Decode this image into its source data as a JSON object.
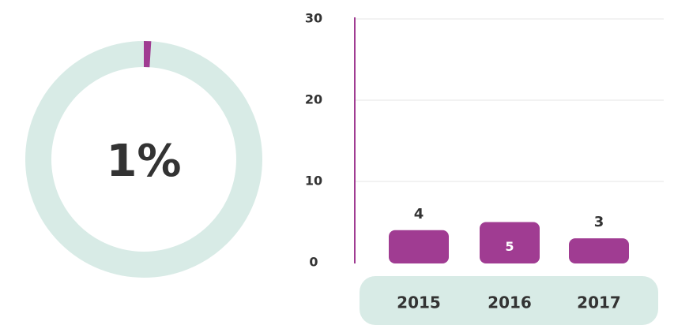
{
  "chart_data": [
    {
      "type": "donut",
      "values": [
        1
      ],
      "value_labels": [
        "1%"
      ],
      "color": "#a03c92",
      "track_color": "#d8ebe6"
    },
    {
      "type": "bar",
      "categories": [
        "2015",
        "2016",
        "2017"
      ],
      "values": [
        4,
        5,
        3
      ],
      "color": "#a03c92",
      "ylim": [
        0,
        30
      ],
      "yticks": [
        0,
        10,
        20,
        30
      ],
      "grid": true
    }
  ]
}
